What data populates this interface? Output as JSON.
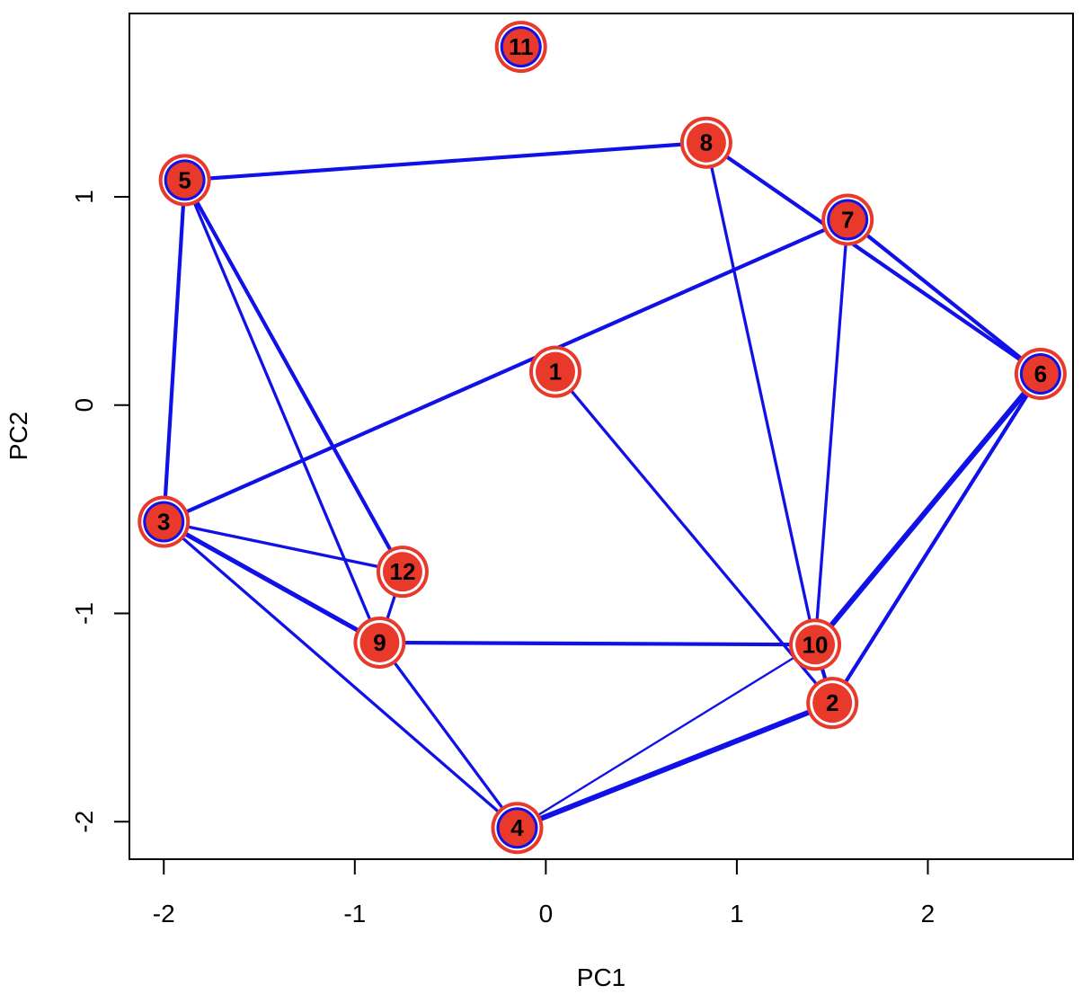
{
  "chart_data": {
    "type": "scatter",
    "title": "",
    "xlabel": "PC1",
    "ylabel": "PC2",
    "xlim": [
      -2.18,
      2.76
    ],
    "ylim": [
      -2.18,
      1.88
    ],
    "x_ticks": [
      -2,
      -1,
      0,
      1,
      2
    ],
    "y_ticks": [
      -2,
      -1,
      0,
      1
    ],
    "x_tick_labels": [
      "-2",
      "-1",
      "0",
      "1",
      "2"
    ],
    "y_tick_labels": [
      "-2",
      "-1",
      "0",
      "1"
    ],
    "grid": false,
    "colors": {
      "edge": "#1010e8",
      "node_fill": "#e8392a",
      "node_ring": "#e8392a",
      "node_gap": "#ffffff",
      "node_inner_ring": "#1010e8"
    },
    "nodes": [
      {
        "id": "1",
        "x": 0.05,
        "y": 0.16,
        "inner_ring": "white"
      },
      {
        "id": "2",
        "x": 1.5,
        "y": -1.43,
        "inner_ring": "white"
      },
      {
        "id": "3",
        "x": -2.0,
        "y": -0.56,
        "inner_ring": "blue"
      },
      {
        "id": "4",
        "x": -0.15,
        "y": -2.03,
        "inner_ring": "blue"
      },
      {
        "id": "5",
        "x": -1.89,
        "y": 1.08,
        "inner_ring": "blue"
      },
      {
        "id": "6",
        "x": 2.59,
        "y": 0.15,
        "inner_ring": "blue"
      },
      {
        "id": "7",
        "x": 1.58,
        "y": 0.89,
        "inner_ring": "blue"
      },
      {
        "id": "8",
        "x": 0.84,
        "y": 1.26,
        "inner_ring": "white"
      },
      {
        "id": "9",
        "x": -0.87,
        "y": -1.14,
        "inner_ring": "white"
      },
      {
        "id": "10",
        "x": 1.41,
        "y": -1.15,
        "inner_ring": "white"
      },
      {
        "id": "11",
        "x": -0.13,
        "y": 1.72,
        "inner_ring": "blue"
      },
      {
        "id": "12",
        "x": -0.75,
        "y": -0.8,
        "inner_ring": "white"
      }
    ],
    "edges": [
      {
        "from": "5",
        "to": "8",
        "weight": 4
      },
      {
        "from": "5",
        "to": "3",
        "weight": 4
      },
      {
        "from": "5",
        "to": "12",
        "weight": 4
      },
      {
        "from": "5",
        "to": "9",
        "weight": 3
      },
      {
        "from": "8",
        "to": "6",
        "weight": 4
      },
      {
        "from": "8",
        "to": "10",
        "weight": 3
      },
      {
        "from": "7",
        "to": "6",
        "weight": 4
      },
      {
        "from": "7",
        "to": "3",
        "weight": 4
      },
      {
        "from": "7",
        "to": "10",
        "weight": 3
      },
      {
        "from": "1",
        "to": "2",
        "weight": 3
      },
      {
        "from": "6",
        "to": "10",
        "weight": 6
      },
      {
        "from": "6",
        "to": "2",
        "weight": 4
      },
      {
        "from": "3",
        "to": "12",
        "weight": 3
      },
      {
        "from": "3",
        "to": "9",
        "weight": 5
      },
      {
        "from": "3",
        "to": "4",
        "weight": 3
      },
      {
        "from": "12",
        "to": "9",
        "weight": 3
      },
      {
        "from": "9",
        "to": "10",
        "weight": 4
      },
      {
        "from": "9",
        "to": "4",
        "weight": 3
      },
      {
        "from": "4",
        "to": "2",
        "weight": 6
      },
      {
        "from": "4",
        "to": "10",
        "weight": 2
      },
      {
        "from": "10",
        "to": "2",
        "weight": 4
      }
    ]
  }
}
